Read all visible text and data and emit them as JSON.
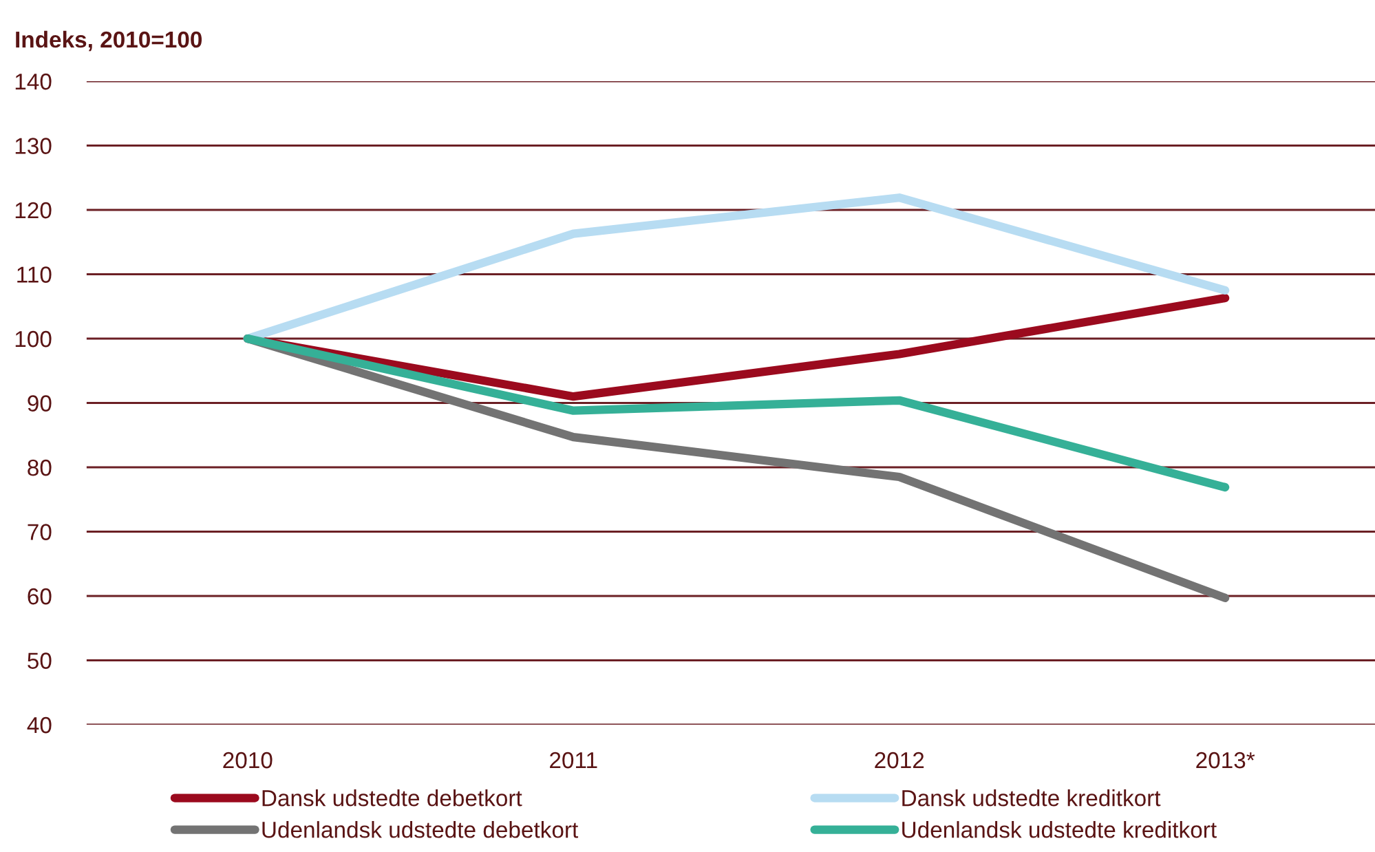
{
  "chart_data": {
    "type": "line",
    "ylabel": "Indeks, 2010=100",
    "categories": [
      "2010",
      "2011",
      "2012",
      "2013*"
    ],
    "series": [
      {
        "name": "Dansk udstedte debetkort",
        "color": "#9b0a1e",
        "values": [
          100,
          91.0,
          97.6,
          106.3
        ]
      },
      {
        "name": "Dansk udstedte kreditkort",
        "color": "#b7dcf2",
        "values": [
          100,
          116.3,
          121.9,
          107.5
        ]
      },
      {
        "name": "Udenlandsk udstedte debetkort",
        "color": "#737373",
        "values": [
          100,
          84.7,
          78.5,
          59.7
        ]
      },
      {
        "name": "Udenlandsk udstedte kreditkort",
        "color": "#35b097",
        "values": [
          100,
          88.8,
          90.4,
          76.9
        ]
      }
    ],
    "ylim": [
      40,
      140
    ],
    "yticks": [
      40,
      50,
      60,
      70,
      80,
      90,
      100,
      110,
      120,
      130,
      140
    ],
    "grid": "y",
    "legend": "bottom",
    "marker": "none",
    "line_style": "solid"
  }
}
